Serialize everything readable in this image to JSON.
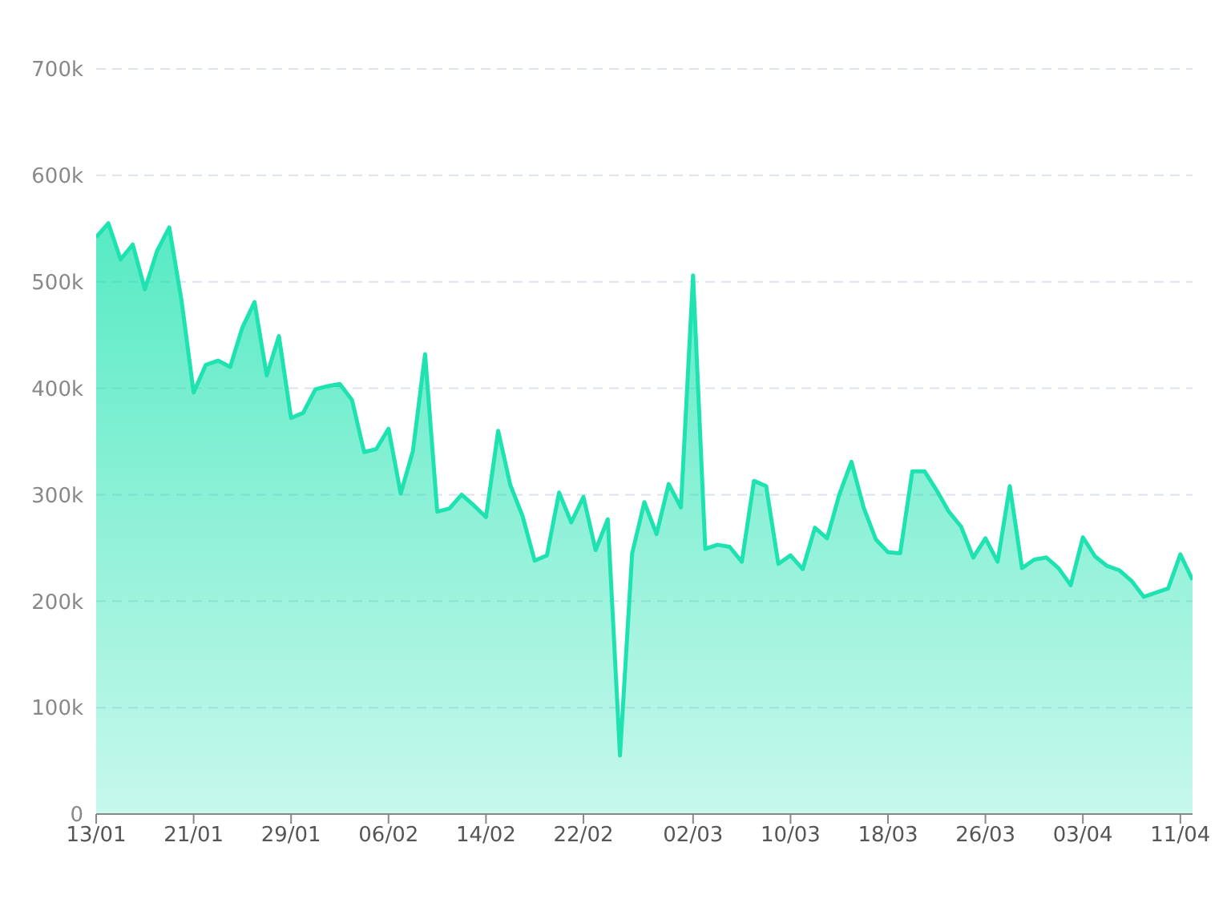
{
  "chart_data": {
    "type": "area",
    "grid": "y",
    "xlim": [
      "--01-13",
      "--04-12"
    ],
    "ylim": [
      0,
      700000
    ],
    "xticks": [
      {
        "value": "--01-13",
        "label": "13/01"
      },
      {
        "value": "--01-21",
        "label": "21/01"
      },
      {
        "value": "--01-29",
        "label": "29/01"
      },
      {
        "value": "--02-06",
        "label": "06/02"
      },
      {
        "value": "--02-14",
        "label": "14/02"
      },
      {
        "value": "--02-22",
        "label": "22/02"
      },
      {
        "value": "--03-02",
        "label": "02/03"
      },
      {
        "value": "--03-10",
        "label": "10/03"
      },
      {
        "value": "--03-18",
        "label": "18/03"
      },
      {
        "value": "--03-26",
        "label": "26/03"
      },
      {
        "value": "--04-03",
        "label": "03/04"
      },
      {
        "value": "--04-11",
        "label": "11/04"
      }
    ],
    "yticks": [
      0,
      {
        "value": 100000,
        "label": "100k"
      },
      {
        "value": 200000,
        "label": "200k"
      },
      {
        "value": 300000,
        "label": "300k"
      },
      {
        "value": 400000,
        "label": "400k"
      },
      {
        "value": 500000,
        "label": "500k"
      },
      {
        "value": 600000,
        "label": "600k"
      },
      {
        "value": 700000,
        "label": "700k"
      }
    ],
    "x": [
      "--01-13",
      "--01-14",
      "--01-15",
      "--01-16",
      "--01-17",
      "--01-18",
      "--01-19",
      "--01-20",
      "--01-21",
      "--01-22",
      "--01-23",
      "--01-24",
      "--01-25",
      "--01-26",
      "--01-27",
      "--01-28",
      "--01-29",
      "--01-30",
      "--01-31",
      "--02-01",
      "--02-02",
      "--02-03",
      "--02-04",
      "--02-05",
      "--02-06",
      "--02-07",
      "--02-08",
      "--02-09",
      "--02-10",
      "--02-11",
      "--02-12",
      "--02-13",
      "--02-14",
      "--02-15",
      "--02-16",
      "--02-17",
      "--02-18",
      "--02-19",
      "--02-20",
      "--02-21",
      "--02-22",
      "--02-23",
      "--02-24",
      "--02-25",
      "--02-26",
      "--02-27",
      "--02-28",
      "--02-29",
      "--03-01",
      "--03-02",
      "--03-03",
      "--03-04",
      "--03-05",
      "--03-06",
      "--03-07",
      "--03-08",
      "--03-09",
      "--03-10",
      "--03-11",
      "--03-12",
      "--03-13",
      "--03-14",
      "--03-15",
      "--03-16",
      "--03-17",
      "--03-18",
      "--03-19",
      "--03-20",
      "--03-21",
      "--03-22",
      "--03-23",
      "--03-24",
      "--03-25",
      "--03-26",
      "--03-27",
      "--03-28",
      "--03-29",
      "--03-30",
      "--03-31",
      "--04-01",
      "--04-02",
      "--04-03",
      "--04-04",
      "--04-05",
      "--04-06",
      "--04-07",
      "--04-08",
      "--04-09",
      "--04-10",
      "--04-11",
      "--04-12"
    ],
    "series": [
      {
        "color": "#1ee3b0",
        "values": [
          542000,
          555000,
          521000,
          535000,
          493000,
          529000,
          551000,
          483000,
          396000,
          422000,
          426000,
          420000,
          457000,
          481000,
          412000,
          449000,
          372000,
          377000,
          399000,
          402000,
          404000,
          389000,
          340000,
          343000,
          362000,
          301000,
          341000,
          432000,
          284000,
          287000,
          300000,
          290000,
          279000,
          360000,
          309000,
          280000,
          238000,
          243000,
          302000,
          274000,
          298000,
          248000,
          277000,
          55000,
          245000,
          293000,
          263000,
          310000,
          288000,
          506000,
          249000,
          253000,
          251000,
          237000,
          313000,
          308000,
          235000,
          243000,
          230000,
          269000,
          259000,
          300000,
          331000,
          288000,
          258000,
          246000,
          245000,
          322000,
          322000,
          304000,
          284000,
          270000,
          241000,
          259000,
          237000,
          308000,
          231000,
          239000,
          241000,
          231000,
          215000,
          260000,
          242000,
          233000,
          229000,
          219000,
          204000,
          208000,
          212000,
          244000,
          220000
        ]
      }
    ]
  }
}
